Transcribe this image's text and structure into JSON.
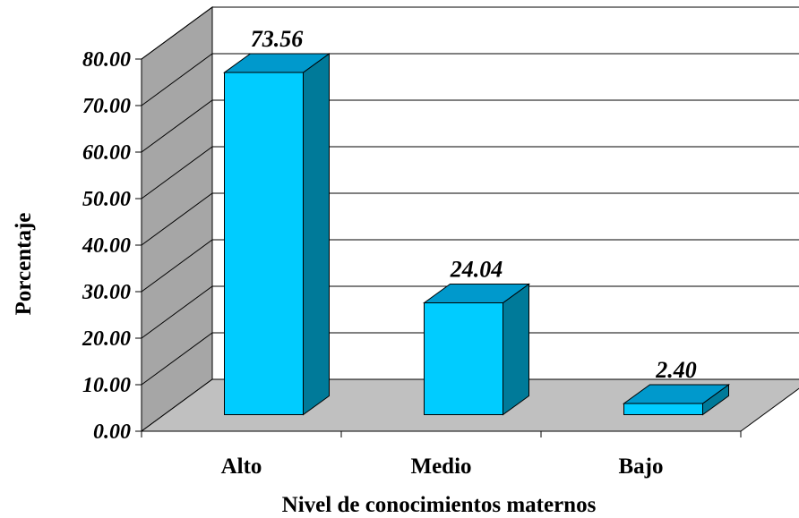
{
  "chart_data": {
    "type": "bar",
    "categories": [
      "Alto",
      "Medio",
      "Bajo"
    ],
    "values": [
      73.56,
      24.04,
      2.4
    ],
    "value_labels": [
      "73.56",
      "24.04",
      "2.40"
    ],
    "ylabel": "Porcentaje",
    "xlabel": "Nivel de conocimientos maternos",
    "ylim": [
      0,
      80
    ],
    "yticks": [
      "0.00",
      "10.00",
      "20.00",
      "30.00",
      "40.00",
      "50.00",
      "60.00",
      "70.00",
      "80.00"
    ],
    "grid": true,
    "three_d": true,
    "colors": {
      "bar_front": "#00CCFF",
      "bar_side": "#007A99",
      "bar_top": "#0099CC",
      "floor": "#C0C0C0",
      "wall": "#FFFFFF",
      "side_wall": "#A6A6A6"
    }
  }
}
